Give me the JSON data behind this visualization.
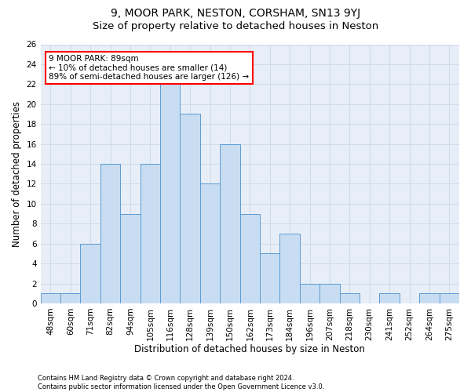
{
  "title": "9, MOOR PARK, NESTON, CORSHAM, SN13 9YJ",
  "subtitle": "Size of property relative to detached houses in Neston",
  "xlabel": "Distribution of detached houses by size in Neston",
  "ylabel": "Number of detached properties",
  "bar_labels": [
    "48sqm",
    "60sqm",
    "71sqm",
    "82sqm",
    "94sqm",
    "105sqm",
    "116sqm",
    "128sqm",
    "139sqm",
    "150sqm",
    "162sqm",
    "173sqm",
    "184sqm",
    "196sqm",
    "207sqm",
    "218sqm",
    "230sqm",
    "241sqm",
    "252sqm",
    "264sqm",
    "275sqm"
  ],
  "bar_values": [
    1,
    1,
    6,
    14,
    9,
    14,
    22,
    19,
    12,
    16,
    9,
    5,
    7,
    2,
    2,
    1,
    0,
    1,
    0,
    1,
    1
  ],
  "bar_color": "#c9ddf2",
  "bar_edge_color": "#5b9bd5",
  "annotation_text": "9 MOOR PARK: 89sqm\n← 10% of detached houses are smaller (14)\n89% of semi-detached houses are larger (126) →",
  "annotation_box_color": "white",
  "annotation_box_edge": "red",
  "ylim": [
    0,
    26
  ],
  "yticks": [
    0,
    2,
    4,
    6,
    8,
    10,
    12,
    14,
    16,
    18,
    20,
    22,
    24,
    26
  ],
  "grid_color": "#d0dcea",
  "bg_color": "#e8eef8",
  "footer": "Contains HM Land Registry data © Crown copyright and database right 2024.\nContains public sector information licensed under the Open Government Licence v3.0.",
  "title_fontsize": 10,
  "subtitle_fontsize": 9.5,
  "xlabel_fontsize": 8.5,
  "ylabel_fontsize": 8.5,
  "tick_fontsize": 7.5,
  "annotation_fontsize": 7.5,
  "footer_fontsize": 6
}
